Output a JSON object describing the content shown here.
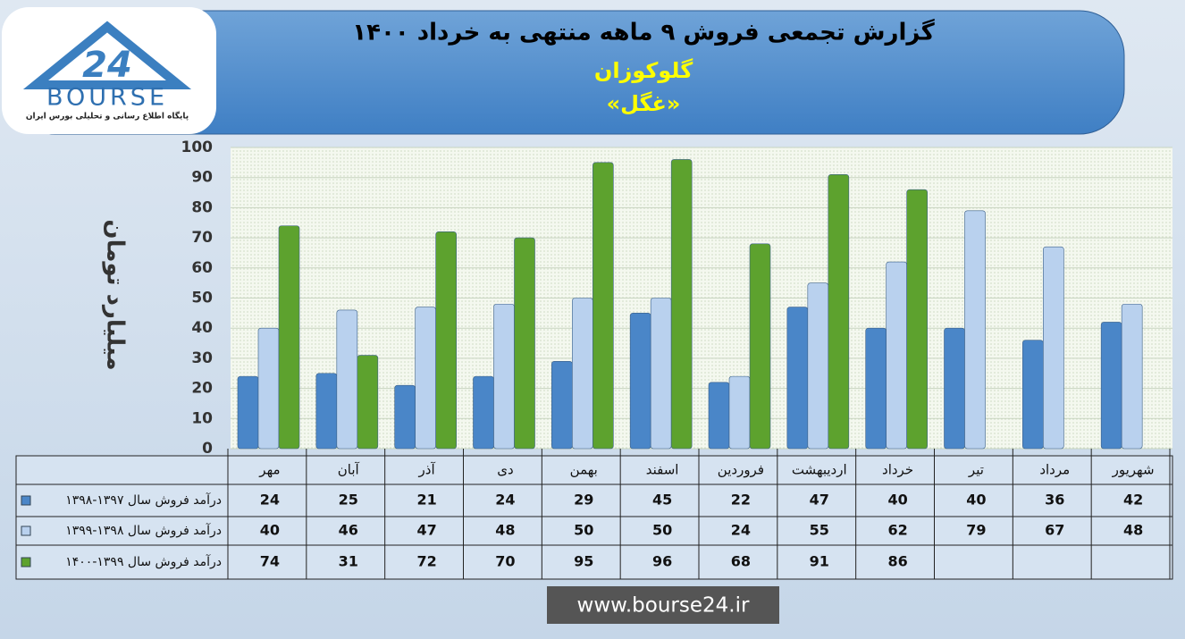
{
  "logo": {
    "text": "BOURSE",
    "tagline": "پایگاه اطلاع رسانی و تحلیلی بورس ایران"
  },
  "footer": "www.bourse24.ir",
  "chart_data": {
    "type": "bar",
    "title": "گزارش تجمعی فروش ۹ ماهه منتهی به خرداد ۱۴۰۰",
    "subtitle": "گلوکوزان",
    "symbol": "«غگل»",
    "y_label": "میلیارد تومان",
    "categories": [
      "مهر",
      "آبان",
      "آذر",
      "دی",
      "بهمن",
      "اسفند",
      "فروردین",
      "اردیبهشت",
      "خرداد",
      "تیر",
      "مرداد",
      "شهریور"
    ],
    "series": [
      {
        "name": "درآمد فروش سال ۱۳۹۷-۱۳۹۸",
        "color": "#4a86c8",
        "values": [
          24,
          25,
          21,
          24,
          29,
          45,
          22,
          47,
          40,
          40,
          36,
          42
        ]
      },
      {
        "name": "درآمد فروش سال ۱۳۹۸-۱۳۹۹",
        "color": "#b9d1ee",
        "values": [
          40,
          46,
          47,
          48,
          50,
          50,
          24,
          55,
          62,
          79,
          67,
          48
        ]
      },
      {
        "name": "درآمد فروش سال ۱۳۹۹-۱۴۰۰",
        "color": "#5da22e",
        "values": [
          74,
          31,
          72,
          70,
          95,
          96,
          68,
          91,
          86,
          null,
          null,
          null
        ]
      }
    ],
    "ylim": [
      0,
      100
    ],
    "yticks": [
      0,
      10,
      20,
      30,
      40,
      50,
      60,
      70,
      80,
      90,
      100
    ],
    "grid": true
  }
}
